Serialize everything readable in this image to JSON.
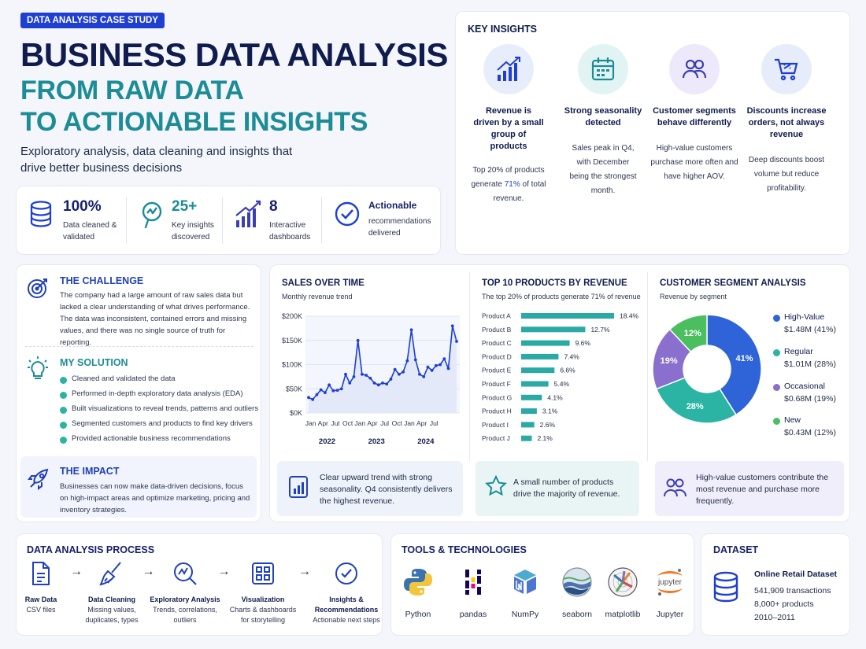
{
  "header": {
    "badge": "DATA ANALYSIS CASE STUDY",
    "title_line1": "BUSINESS DATA ANALYSIS",
    "title_line2": "FROM RAW DATA",
    "title_line3": "TO ACTIONABLE INSIGHTS",
    "subtitle": "Exploratory analysis, data cleaning and insights that drive better business decisions"
  },
  "kpis": [
    {
      "value": "100%",
      "desc": "Data cleaned & validated",
      "icon": "database-icon"
    },
    {
      "value": "25+",
      "desc": "Key insights discovered",
      "icon": "search-chart-icon"
    },
    {
      "value": "8",
      "desc": "Interactive dashboards",
      "icon": "bar-growth-icon"
    },
    {
      "value": "Actionable",
      "desc": "recommendations delivered",
      "icon": "check-circle-icon"
    }
  ],
  "key_insights": {
    "title": "KEY INSIGHTS",
    "items": [
      {
        "title": "Revenue is driven by a small group of products",
        "desc_pre": "Top 20% of products generate ",
        "desc_hl": "71%",
        "desc_post": " of total revenue.",
        "icon": "growth-bars-icon"
      },
      {
        "title": "Strong seasonality detected",
        "desc": "Sales peak in Q4, with December being the strongest month.",
        "icon": "calendar-icon"
      },
      {
        "title": "Customer segments behave differently",
        "desc": "High-value customers purchase more often and have higher AOV.",
        "icon": "users-icon"
      },
      {
        "title": "Discounts increase orders, not always revenue",
        "desc": "Deep discounts boost volume but reduce profitability.",
        "icon": "cart-icon"
      }
    ]
  },
  "challenge": {
    "title": "THE CHALLENGE",
    "text": "The company had a large amount of raw sales data but lacked a clear understanding of what drives performance. The data was inconsistent, contained errors and missing values, and there was no single source of truth for reporting."
  },
  "solution": {
    "title": "MY SOLUTION",
    "items": [
      "Cleaned and validated the data",
      "Performed in-depth exploratory data analysis (EDA)",
      "Built visualizations to reveal trends, patterns and outliers",
      "Segmented customers and products to find key drivers",
      "Provided actionable business recommendations"
    ]
  },
  "impact": {
    "title": "THE IMPACT",
    "text": "Businesses can now make data-driven decisions, focus on high-impact areas and optimize marketing, pricing and inventory strategies."
  },
  "chart_data": [
    {
      "type": "line",
      "title": "SALES OVER TIME",
      "subtitle": "Monthly revenue trend",
      "y_ticks": [
        "$200K",
        "$150K",
        "$100K",
        "$50K",
        "$0K"
      ],
      "ylim": [
        0,
        200
      ],
      "x_tick_labels": [
        "Jan",
        "Apr",
        "Jul",
        "Oct",
        "Jan",
        "Apr",
        "Jul",
        "Oct",
        "Jan",
        "Apr",
        "Jul"
      ],
      "year_labels": [
        "2022",
        "2023",
        "2024"
      ],
      "values": [
        32,
        28,
        38,
        48,
        42,
        58,
        46,
        47,
        50,
        80,
        62,
        75,
        150,
        80,
        78,
        72,
        62,
        58,
        62,
        60,
        70,
        90,
        80,
        85,
        108,
        172,
        110,
        80,
        75,
        95,
        88,
        98,
        100,
        112,
        92,
        180,
        148
      ]
    },
    {
      "type": "bar",
      "title": "TOP 10 PRODUCTS BY REVENUE",
      "subtitle": "The top 20% of products generate 71% of revenue",
      "categories": [
        "Product A",
        "Product B",
        "Product C",
        "Product D",
        "Product E",
        "Product F",
        "Product G",
        "Product H",
        "Product I",
        "Product J"
      ],
      "values": [
        18.4,
        12.7,
        9.6,
        7.4,
        6.6,
        5.4,
        4.1,
        3.1,
        2.6,
        2.1
      ],
      "value_labels": [
        "18.4%",
        "12.7%",
        "9.6%",
        "7.4%",
        "6.6%",
        "5.4%",
        "4.1%",
        "3.1%",
        "2.6%",
        "2.1%"
      ]
    },
    {
      "type": "pie",
      "title": "CUSTOMER SEGMENT ANALYSIS",
      "subtitle": "Revenue by segment",
      "slices": [
        {
          "name": "High-Value",
          "value": 41,
          "amount": "$1.48M (41%)",
          "label": "41%",
          "color": "#2f63d8"
        },
        {
          "name": "Regular",
          "value": 28,
          "amount": "$1.01M (28%)",
          "label": "28%",
          "color": "#2bb3a3"
        },
        {
          "name": "Occasional",
          "value": 19,
          "amount": "$0.68M (19%)",
          "label": "19%",
          "color": "#8b6fce"
        },
        {
          "name": "New",
          "value": 12,
          "amount": "$0.43M (12%)",
          "label": "12%",
          "color": "#4bbf5f"
        }
      ]
    }
  ],
  "notes": {
    "sales": "Clear upward trend with strong seasonality. Q4 consistently delivers the highest revenue.",
    "products": "A small number of products drive the majority of revenue.",
    "segments": "High-value customers contribute the most revenue and purchase more frequently."
  },
  "process": {
    "title": "DATA ANALYSIS PROCESS",
    "steps": [
      {
        "name": "Raw Data",
        "desc": "CSV files"
      },
      {
        "name": "Data Cleaning",
        "desc": "Missing values, duplicates, types"
      },
      {
        "name": "Exploratory Analysis",
        "desc": "Trends, correlations, outliers"
      },
      {
        "name": "Visualization",
        "desc": "Charts & dashboards for storytelling"
      },
      {
        "name": "Insights & Recommendations",
        "desc": "Actionable next steps"
      }
    ]
  },
  "tools": {
    "title": "TOOLS & TECHNOLOGIES",
    "items": [
      "Python",
      "pandas",
      "NumPy",
      "seaborn",
      "matplotlib",
      "Jupyter"
    ],
    "jupyter_logo_text": "jupyter"
  },
  "dataset": {
    "title": "DATASET",
    "name": "Online Retail Dataset",
    "lines": [
      "541,909 transactions",
      "8,000+ products",
      "2010–2011"
    ]
  },
  "colors": {
    "navy": "#0f1c4d",
    "teal": "#1c8c97",
    "blue": "#1f3fd1",
    "bar": "#2ba9a5"
  }
}
